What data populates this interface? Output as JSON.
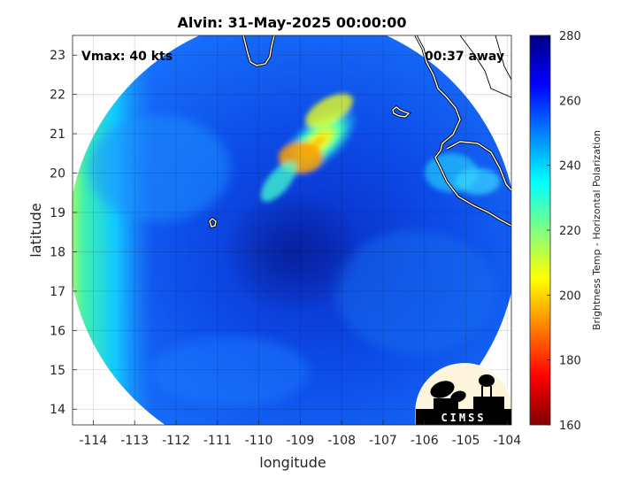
{
  "chart_data": {
    "type": "heatmap",
    "title": "Alvin: 31-May-2025 00:00:00",
    "xlabel": "longitude",
    "ylabel": "latitude",
    "xlim": [
      -114.5,
      -103.9
    ],
    "ylim": [
      13.6,
      23.5
    ],
    "x_ticks": [
      -114,
      -113,
      -112,
      -111,
      -110,
      -109,
      -108,
      -107,
      -106,
      -105,
      -104
    ],
    "y_ticks": [
      14,
      15,
      16,
      17,
      18,
      19,
      20,
      21,
      22,
      23
    ],
    "grid": true,
    "annotations": {
      "top_left": "Vmax: 40 kts",
      "top_right": "00:37 away"
    },
    "colorbar": {
      "label": "Brightness Temp - Horizontal Polarization",
      "range": [
        160,
        280
      ],
      "ticks": [
        160,
        180,
        200,
        220,
        240,
        260,
        280
      ],
      "colors": [
        "#800000",
        "#ff0000",
        "#ff8000",
        "#ffff00",
        "#80ff80",
        "#00ffff",
        "#0080ff",
        "#0000ff",
        "#000080"
      ]
    },
    "field": {
      "description_values_kelvin": {
        "background_min": 262,
        "western_edge_max": 232,
        "convection_band_min": 205,
        "center_lon": -109.2,
        "center_lat": 18.3
      },
      "swath_center": [
        -109.0,
        18.3
      ],
      "swath_radius_deg": 5.0
    },
    "logo_text": "CIMSS"
  }
}
